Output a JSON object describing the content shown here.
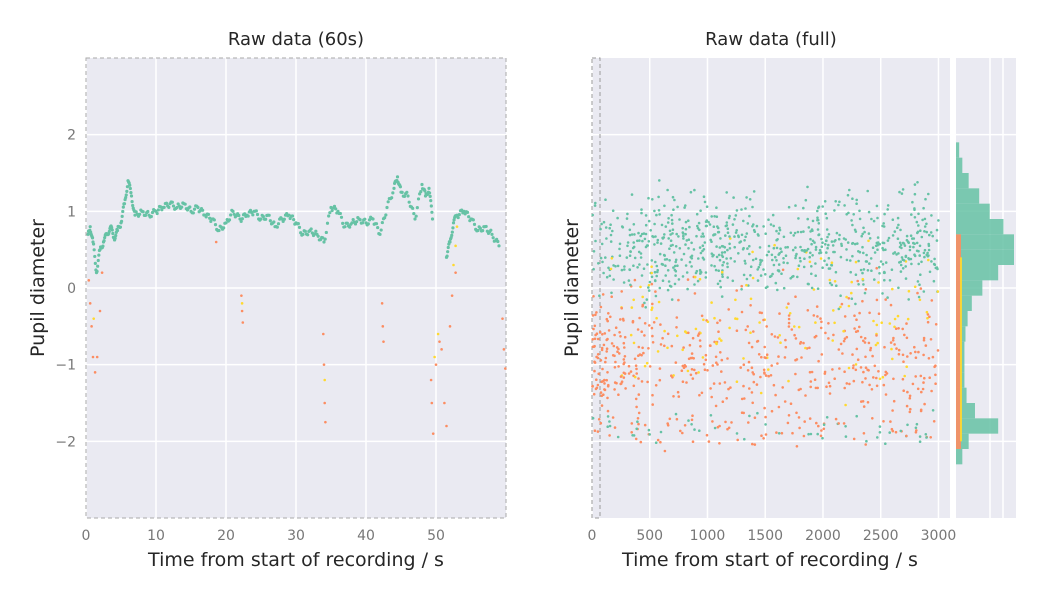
{
  "figure": {
    "background": "#ffffff"
  },
  "palette": {
    "panel_bg": "#eaeaf2",
    "grid": "#ffffff",
    "green": "#66c2a5",
    "orange": "#fc8d62",
    "yellow": "#ffd92f"
  },
  "chart_data": [
    {
      "type": "scatter",
      "title": "Raw data (60s)",
      "xlabel": "Time from start of recording / s",
      "ylabel": "Pupil diameter",
      "xlim": [
        0,
        60
      ],
      "ylim": [
        -3,
        3
      ],
      "xticks": [
        0,
        10,
        20,
        30,
        40,
        50
      ],
      "yticks": [
        -2,
        -1,
        0,
        1,
        2
      ],
      "grid": true,
      "series": [
        {
          "color": "#66c2a5",
          "points": [
            [
              0.3,
              0.7
            ],
            [
              0.6,
              0.8
            ],
            [
              1.0,
              0.6
            ],
            [
              1.5,
              0.2
            ],
            [
              2.0,
              0.5
            ],
            [
              2.5,
              0.6
            ],
            [
              3.0,
              0.7
            ],
            [
              3.5,
              0.8
            ],
            [
              4.0,
              0.65
            ],
            [
              4.5,
              0.75
            ],
            [
              5.0,
              0.85
            ],
            [
              5.5,
              1.1
            ],
            [
              6.0,
              1.4
            ],
            [
              6.5,
              1.2
            ],
            [
              7.0,
              0.95
            ],
            [
              8.0,
              1.0
            ],
            [
              9.0,
              0.95
            ],
            [
              10.0,
              1.0
            ],
            [
              11.0,
              1.05
            ],
            [
              12.0,
              1.1
            ],
            [
              13.0,
              1.05
            ],
            [
              14.0,
              1.1
            ],
            [
              15.0,
              1.0
            ],
            [
              16.0,
              1.05
            ],
            [
              17.0,
              0.95
            ],
            [
              18.0,
              0.9
            ],
            [
              19.0,
              0.75
            ],
            [
              20.0,
              0.85
            ],
            [
              21.0,
              1.0
            ],
            [
              22.0,
              0.9
            ],
            [
              23.0,
              0.95
            ],
            [
              24.0,
              1.0
            ],
            [
              25.0,
              0.9
            ],
            [
              26.0,
              0.95
            ],
            [
              27.0,
              0.8
            ],
            [
              28.0,
              0.9
            ],
            [
              29.0,
              0.95
            ],
            [
              30.0,
              0.85
            ],
            [
              31.0,
              0.7
            ],
            [
              32.0,
              0.75
            ],
            [
              33.0,
              0.7
            ],
            [
              34.0,
              0.6
            ],
            [
              35.0,
              1.05
            ],
            [
              36.0,
              1.0
            ],
            [
              37.0,
              0.8
            ],
            [
              38.0,
              0.85
            ],
            [
              39.0,
              0.9
            ],
            [
              40.0,
              0.85
            ],
            [
              41.0,
              0.9
            ],
            [
              42.0,
              0.7
            ],
            [
              43.0,
              1.05
            ],
            [
              44.0,
              1.3
            ],
            [
              44.5,
              1.45
            ],
            [
              45.0,
              1.25
            ],
            [
              46.0,
              1.2
            ],
            [
              47.0,
              0.9
            ],
            [
              48.0,
              1.35
            ],
            [
              48.5,
              1.2
            ],
            [
              49.0,
              1.3
            ],
            [
              49.5,
              0.9
            ],
            [
              51.5,
              0.4
            ],
            [
              52.0,
              0.6
            ],
            [
              52.5,
              0.85
            ],
            [
              53.0,
              0.95
            ],
            [
              54.0,
              1.0
            ],
            [
              55.0,
              0.9
            ],
            [
              56.0,
              0.75
            ],
            [
              57.0,
              0.8
            ],
            [
              58.0,
              0.7
            ],
            [
              59.0,
              0.55
            ]
          ]
        },
        {
          "color": "#fc8d62",
          "points": [
            [
              0.4,
              0.1
            ],
            [
              0.6,
              -0.2
            ],
            [
              0.8,
              -0.5
            ],
            [
              1.0,
              -0.9
            ],
            [
              1.3,
              -1.1
            ],
            [
              1.6,
              -0.9
            ],
            [
              2.0,
              -0.3
            ],
            [
              2.3,
              0.2
            ],
            [
              18.6,
              0.6
            ],
            [
              22.2,
              -0.1
            ],
            [
              22.3,
              -0.3
            ],
            [
              22.4,
              -0.45
            ],
            [
              33.9,
              -0.6
            ],
            [
              34.0,
              -1.0
            ],
            [
              34.1,
              -1.5
            ],
            [
              34.2,
              -1.75
            ],
            [
              42.3,
              -0.2
            ],
            [
              42.4,
              -0.5
            ],
            [
              42.5,
              -0.7
            ],
            [
              49.3,
              -1.2
            ],
            [
              49.4,
              -1.5
            ],
            [
              49.6,
              -1.9
            ],
            [
              50.0,
              -1.0
            ],
            [
              50.5,
              -0.7
            ],
            [
              50.8,
              -0.8
            ],
            [
              51.2,
              -1.5
            ],
            [
              51.5,
              -1.8
            ],
            [
              52.0,
              -0.5
            ],
            [
              52.3,
              -0.1
            ],
            [
              52.8,
              0.2
            ],
            [
              59.5,
              -0.4
            ],
            [
              59.7,
              -0.8
            ],
            [
              59.9,
              -1.05
            ]
          ]
        },
        {
          "color": "#ffd92f",
          "points": [
            [
              1.1,
              -0.4
            ],
            [
              22.3,
              -0.2
            ],
            [
              50.3,
              -0.6
            ],
            [
              52.5,
              0.3
            ],
            [
              52.8,
              0.55
            ],
            [
              53.0,
              0.8
            ],
            [
              49.8,
              -0.9
            ],
            [
              34.1,
              -1.2
            ]
          ]
        }
      ]
    },
    {
      "type": "scatter",
      "title": "Raw data (full)",
      "xlabel": "Time from start of recording / s",
      "ylabel": "Pupil diameter",
      "xlim": [
        0,
        3100
      ],
      "ylim": [
        -3,
        3
      ],
      "xticks": [
        0,
        500,
        1000,
        1500,
        2000,
        2500,
        3000
      ],
      "grid": true,
      "highlight_window": [
        0,
        60
      ],
      "marginal_histogram": {
        "orientation": "horizontal",
        "bins": [
          -2.3,
          -2.1,
          -1.9,
          -1.7,
          -1.5,
          -1.3,
          -1.1,
          -0.9,
          -0.7,
          -0.5,
          -0.3,
          -0.1,
          0.1,
          0.3,
          0.5,
          0.7,
          0.9,
          1.1,
          1.3,
          1.5,
          1.7,
          1.9
        ],
        "counts": [
          6,
          12,
          40,
          18,
          10,
          8,
          8,
          8,
          9,
          11,
          15,
          25,
          40,
          55,
          55,
          45,
          32,
          22,
          12,
          6,
          3,
          1
        ],
        "colors": [
          "#66c2a5",
          "#fc8d62",
          "#ffd92f"
        ]
      }
    }
  ]
}
